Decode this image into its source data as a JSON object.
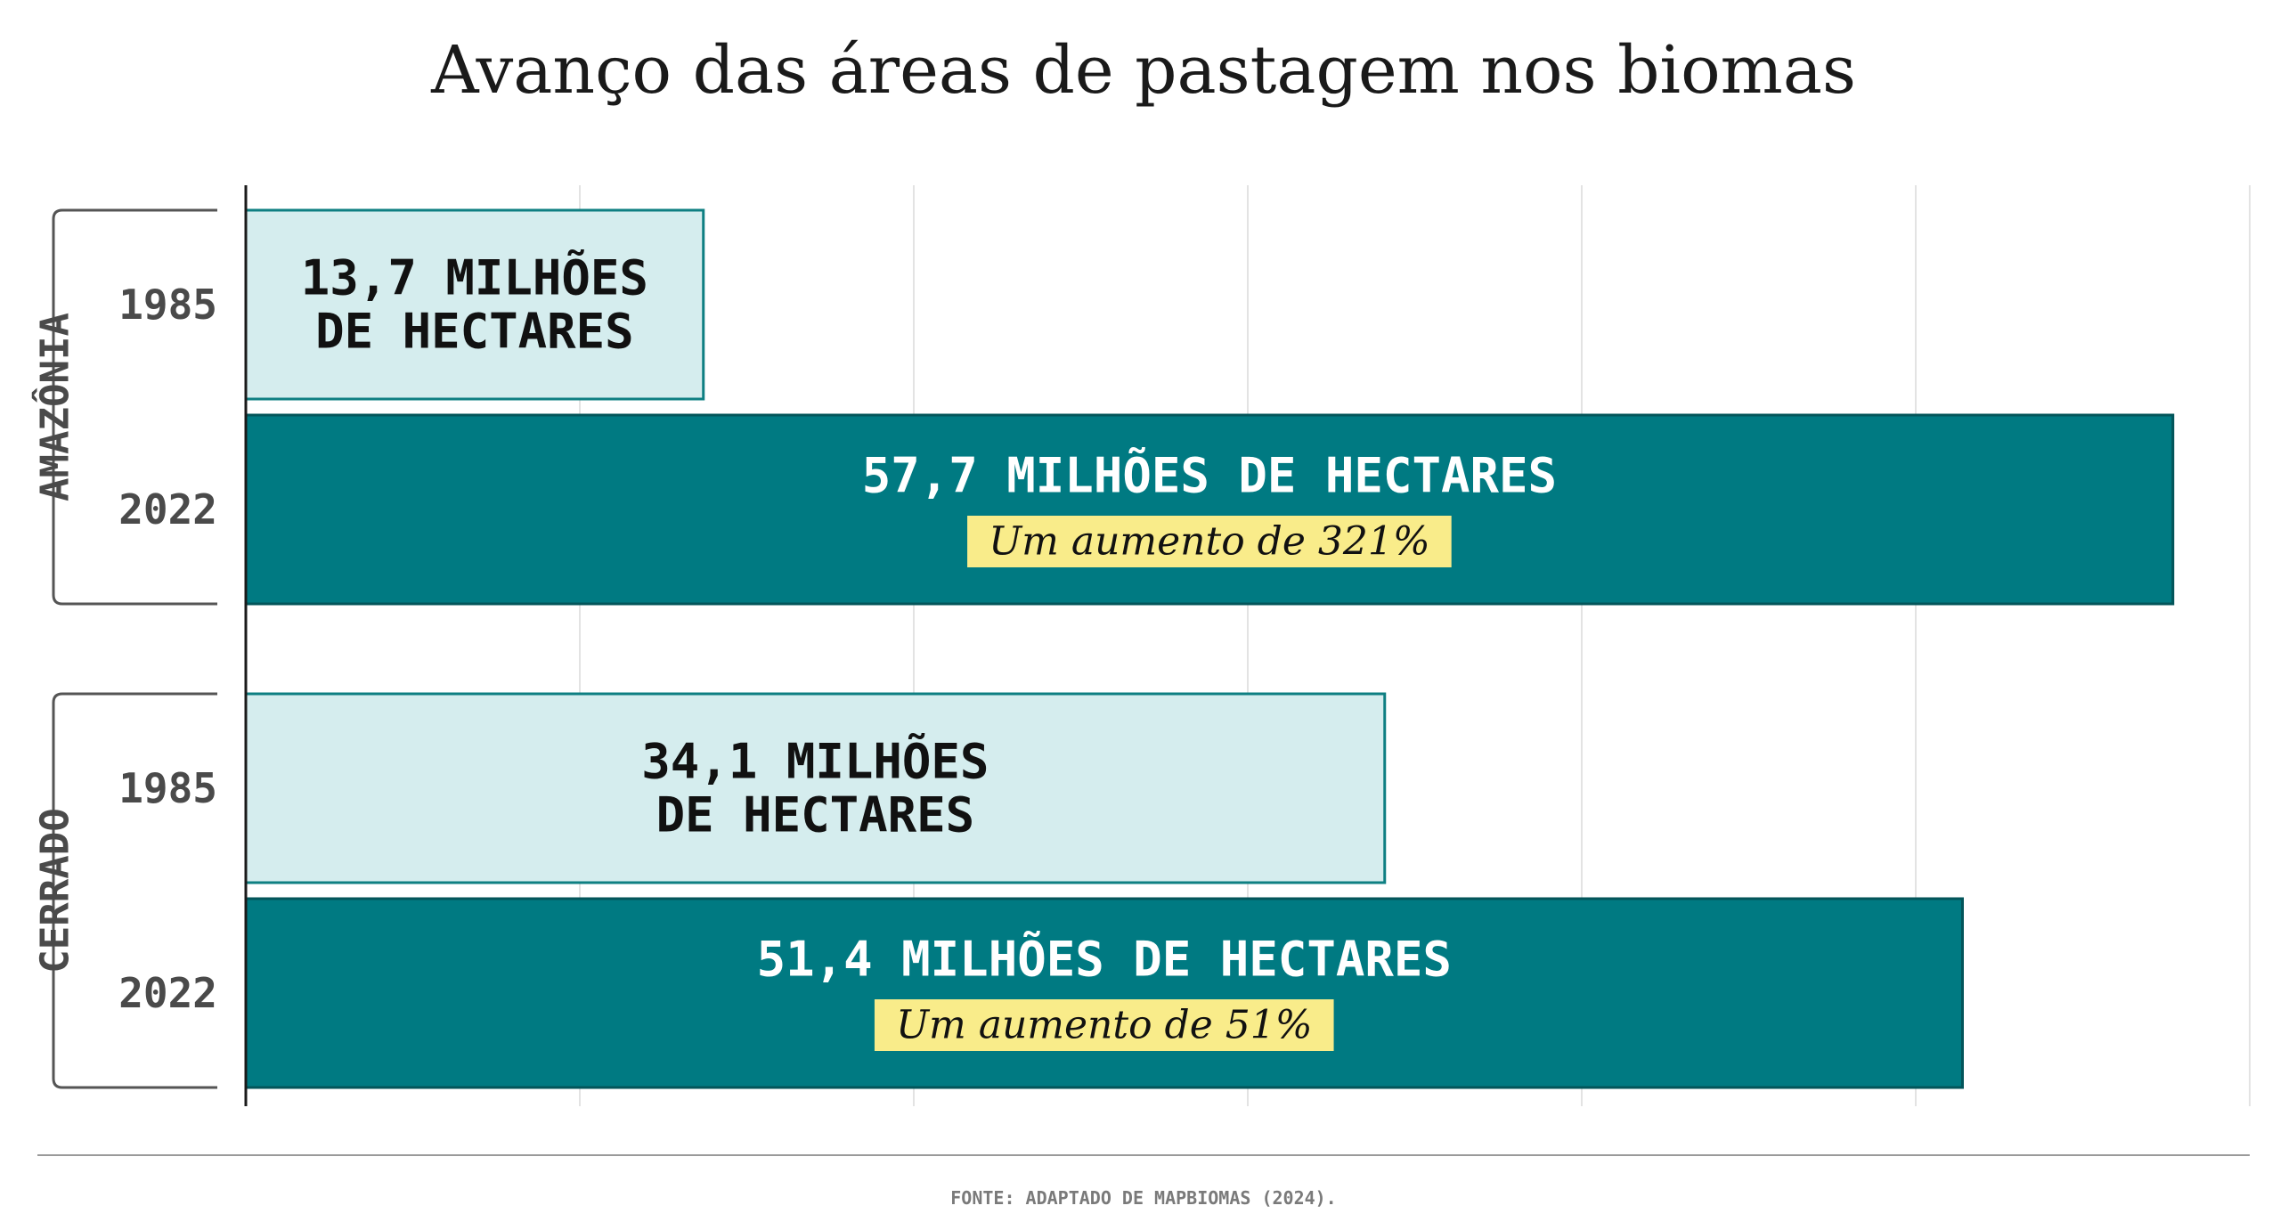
{
  "colors": {
    "bar_1985_fill": "#d5edee",
    "bar_1985_stroke": "#0e7f82",
    "bar_2022_fill": "#007a82",
    "bar_2022_stroke": "#03555a",
    "highlight": "#f9ec8a",
    "gridline": "#e3e3e3",
    "axis": "#1a1a1a"
  },
  "chart_data": {
    "type": "bar",
    "orientation": "horizontal",
    "title": "Avanço das áreas de pastagem nos biomas",
    "source": "FONTE: ADAPTADO DE MAPBIOMAS (2024).",
    "unit": "milhões de hectares",
    "grid": true,
    "xlim": [
      0,
      60
    ],
    "groups": [
      {
        "name": "AMAZÔNIA",
        "bars": [
          {
            "year": "1985",
            "value": 13.7,
            "label_lines": [
              "13,7 MILHÕES",
              "DE HECTARES"
            ]
          },
          {
            "year": "2022",
            "value": 57.7,
            "label_lines": [
              "57,7 MILHÕES DE HECTARES"
            ],
            "increase": "Um aumento de 321%"
          }
        ]
      },
      {
        "name": "CERRADO",
        "bars": [
          {
            "year": "1985",
            "value": 34.1,
            "label_lines": [
              "34,1 MILHÕES",
              "DE HECTARES"
            ]
          },
          {
            "year": "2022",
            "value": 51.4,
            "label_lines": [
              "51,4 MILHÕES DE HECTARES"
            ],
            "increase": "Um aumento de 51%"
          }
        ]
      }
    ]
  }
}
